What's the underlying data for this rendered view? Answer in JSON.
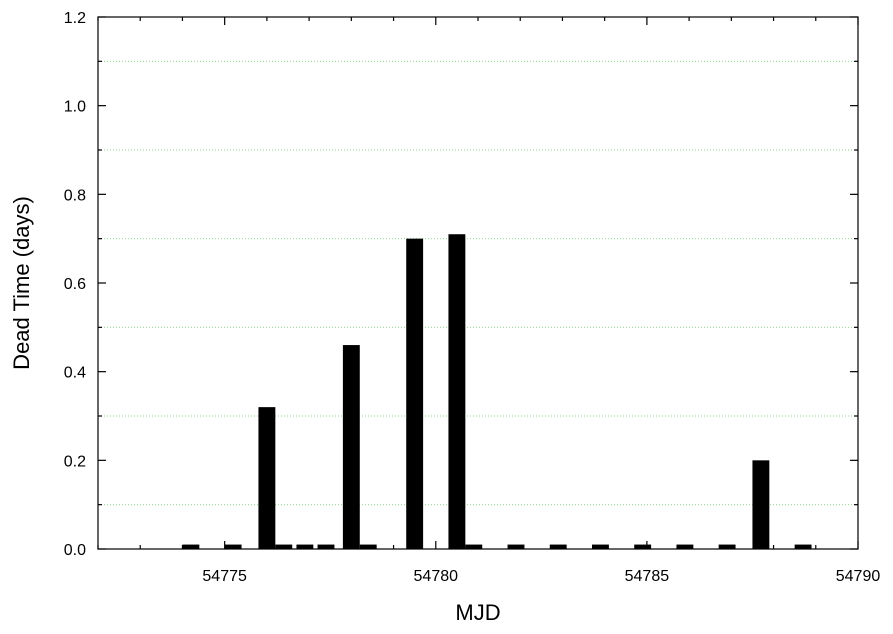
{
  "chart_data": {
    "type": "bar",
    "xlabel": "MJD",
    "ylabel": "Dead Time (days)",
    "xlim": [
      54772,
      54790
    ],
    "ylim": [
      0,
      1.2
    ],
    "grid": true,
    "x_ticks": [
      54775,
      54780,
      54785,
      54790
    ],
    "y_ticks": [
      0.0,
      0.2,
      0.4,
      0.6,
      0.8,
      1.0,
      1.2
    ],
    "bar_width": 0.4,
    "x": [
      54774.2,
      54775.2,
      54776.0,
      54776.4,
      54776.9,
      54777.4,
      54778.0,
      54778.4,
      54779.5,
      54780.5,
      54780.9,
      54781.9,
      54782.9,
      54783.9,
      54784.9,
      54785.9,
      54786.9,
      54787.7,
      54788.7
    ],
    "values": [
      0.01,
      0.01,
      0.32,
      0.01,
      0.01,
      0.01,
      0.46,
      0.01,
      0.7,
      0.71,
      0.01,
      0.01,
      0.01,
      0.01,
      0.01,
      0.01,
      0.01,
      0.2,
      0.01
    ],
    "colors": {
      "bar": "#000000",
      "grid": "#90d890",
      "axis": "#000000"
    }
  }
}
